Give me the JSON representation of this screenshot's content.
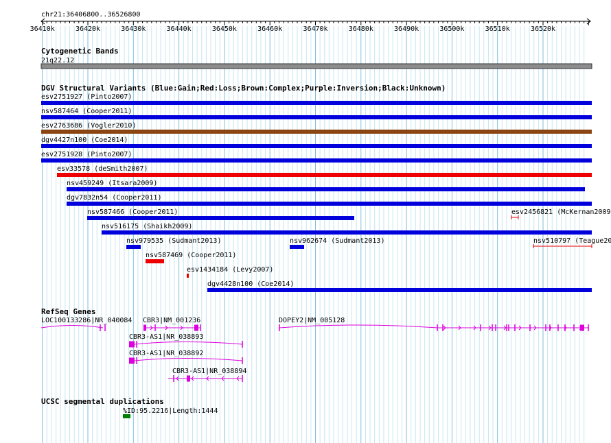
{
  "ruler": {
    "range_label": "chr21:36406800..36526800",
    "ticks": [
      "36410k",
      "36420k",
      "36430k",
      "36440k",
      "36450k",
      "36460k",
      "36470k",
      "36480k",
      "36490k",
      "36500k",
      "36510k",
      "36520k"
    ]
  },
  "cytoband": {
    "title": "Cytogenetic Bands",
    "band_label": "21q22.12"
  },
  "dgv": {
    "title": "DGV Structural Variants (Blue:Gain;Red:Loss;Brown:Complex;Purple:Inversion;Black:Unknown)",
    "colors": {
      "gain": "#0000dd",
      "loss": "#ee0000",
      "complex": "#8b4513"
    },
    "rows": [
      [
        {
          "label": "esv2751927 (Pinto2007)",
          "type": "gain"
        }
      ],
      [
        {
          "label": "nsv587464 (Cooper2011)",
          "type": "gain"
        }
      ],
      [
        {
          "label": "esv2763686 (Vogler2010)",
          "type": "complex"
        }
      ],
      [
        {
          "label": "dgv4427n100 (Coe2014)",
          "type": "gain"
        }
      ],
      [
        {
          "label": "esv2751928 (Pinto2007)",
          "type": "gain"
        }
      ],
      [
        {
          "label": "esv33578 (deSmith2007)",
          "type": "loss"
        }
      ],
      [
        {
          "label": "nsv459249 (Itsara2009)",
          "type": "gain"
        }
      ],
      [
        {
          "label": "dgv7832n54 (Cooper2011)",
          "type": "gain"
        }
      ],
      [
        {
          "label": "nsv587466 (Cooper2011)",
          "type": "gain"
        },
        {
          "label": "esv2456821 (McKernan2009",
          "type": "loss",
          "thin": true
        }
      ],
      [
        {
          "label": "nsv516175 (Shaikh2009)",
          "type": "gain"
        }
      ],
      [
        {
          "label": "nsv979535 (Sudmant2013)",
          "type": "gain"
        },
        {
          "label": "nsv962674 (Sudmant2013)",
          "type": "gain"
        },
        {
          "label": "nsv510797 (Teague20",
          "type": "loss",
          "thin": true
        }
      ],
      [
        {
          "label": "nsv587469 (Cooper2011)",
          "type": "loss"
        }
      ],
      [
        {
          "label": "esv1434184 (Levy2007)",
          "type": "loss"
        }
      ],
      [
        {
          "label": "dgv4428n100 (Coe2014)",
          "type": "gain"
        }
      ]
    ]
  },
  "refseq": {
    "title": "RefSeq Genes",
    "color": "#dd00dd",
    "genes": [
      {
        "label": "LOC100133286|NR_040084"
      },
      {
        "label": "CBR3|NM_001236"
      },
      {
        "label": "DOPEY2|NM_005128"
      },
      {
        "label": "CBR3-AS1|NR_038893"
      },
      {
        "label": "CBR3-AS1|NR_038892"
      },
      {
        "label": "CBR3-AS1|NR_038894"
      }
    ]
  },
  "segdup": {
    "title": "UCSC segmental duplications",
    "item_label": "%ID:95.2216|Length:1444",
    "color": "#008000"
  }
}
